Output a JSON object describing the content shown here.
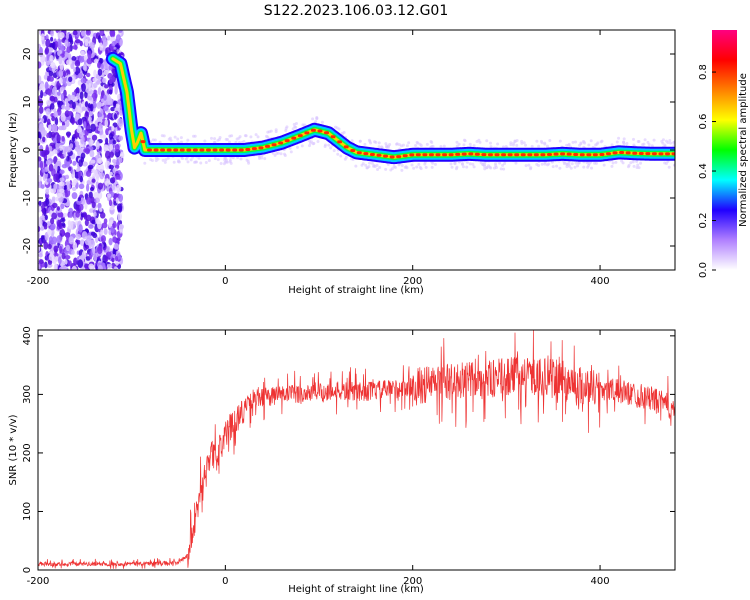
{
  "title": "S122.2023.106.03.12.G01",
  "chart_data": [
    {
      "type": "heatmap",
      "xlabel": "Height of straight line (km)",
      "ylabel": "Frequency (Hz)",
      "xlim": [
        -200,
        480
      ],
      "ylim": [
        -25,
        25
      ],
      "x_ticks": [
        -200,
        0,
        200,
        400
      ],
      "y_ticks": [
        -20,
        -10,
        0,
        10,
        20
      ],
      "grid": false,
      "colorbar": {
        "label": "Normalized spectral amplitude",
        "range": [
          0,
          0.97
        ],
        "ticks": [
          "0.0",
          "0.2",
          "0.4",
          "0.6",
          "0.8"
        ],
        "colors": [
          "#ffffff",
          "#b080ff",
          "#2000ff",
          "#00ffff",
          "#00ff00",
          "#ffff00",
          "#ff8000",
          "#ff0000",
          "#ff0080"
        ]
      },
      "noise_region_x": [
        -200,
        -110
      ],
      "ridge": {
        "x": [
          -120,
          -112,
          -105,
          -100,
          -97,
          -94,
          -90,
          -86,
          -80,
          -60,
          -40,
          -20,
          0,
          20,
          40,
          60,
          80,
          95,
          100,
          110,
          120,
          130,
          140,
          160,
          180,
          200,
          220,
          240,
          260,
          280,
          300,
          320,
          340,
          360,
          380,
          400,
          420,
          440,
          460,
          480
        ],
        "y": [
          19,
          18,
          12,
          4,
          0.5,
          1.5,
          3.5,
          0,
          0,
          0,
          0,
          0,
          0,
          0,
          0.5,
          1.5,
          3,
          4.2,
          4,
          3.5,
          2,
          0.5,
          -0.5,
          -1,
          -1.5,
          -1,
          -1,
          -1,
          -0.8,
          -1,
          -1,
          -1,
          -1,
          -0.8,
          -1,
          -1,
          -0.5,
          -0.7,
          -0.8,
          -0.8
        ]
      }
    },
    {
      "type": "line",
      "xlabel": "Height of straight line (km)",
      "ylabel": "SNR (10 * v/v)",
      "xlim": [
        -200,
        480
      ],
      "ylim": [
        0,
        410
      ],
      "x_ticks": [
        -200,
        0,
        200,
        400
      ],
      "y_ticks": [
        0,
        100,
        200,
        300,
        400
      ],
      "grid": false,
      "color": "#ee3333",
      "series": [
        {
          "x": [
            -200,
            -150,
            -100,
            -50,
            -40,
            -35,
            -30,
            -25,
            -20,
            -15,
            -10,
            -5,
            0,
            10,
            20,
            30,
            40,
            60,
            80,
            100,
            150,
            200,
            220,
            250,
            280,
            300,
            320,
            340,
            360,
            380,
            400,
            420,
            440,
            460,
            480
          ],
          "values": [
            10,
            10,
            11,
            12,
            25,
            60,
            100,
            150,
            180,
            200,
            190,
            210,
            230,
            255,
            275,
            290,
            295,
            300,
            300,
            305,
            305,
            312,
            318,
            322,
            325,
            330,
            332,
            330,
            325,
            315,
            310,
            305,
            300,
            290,
            275
          ]
        }
      ]
    }
  ]
}
